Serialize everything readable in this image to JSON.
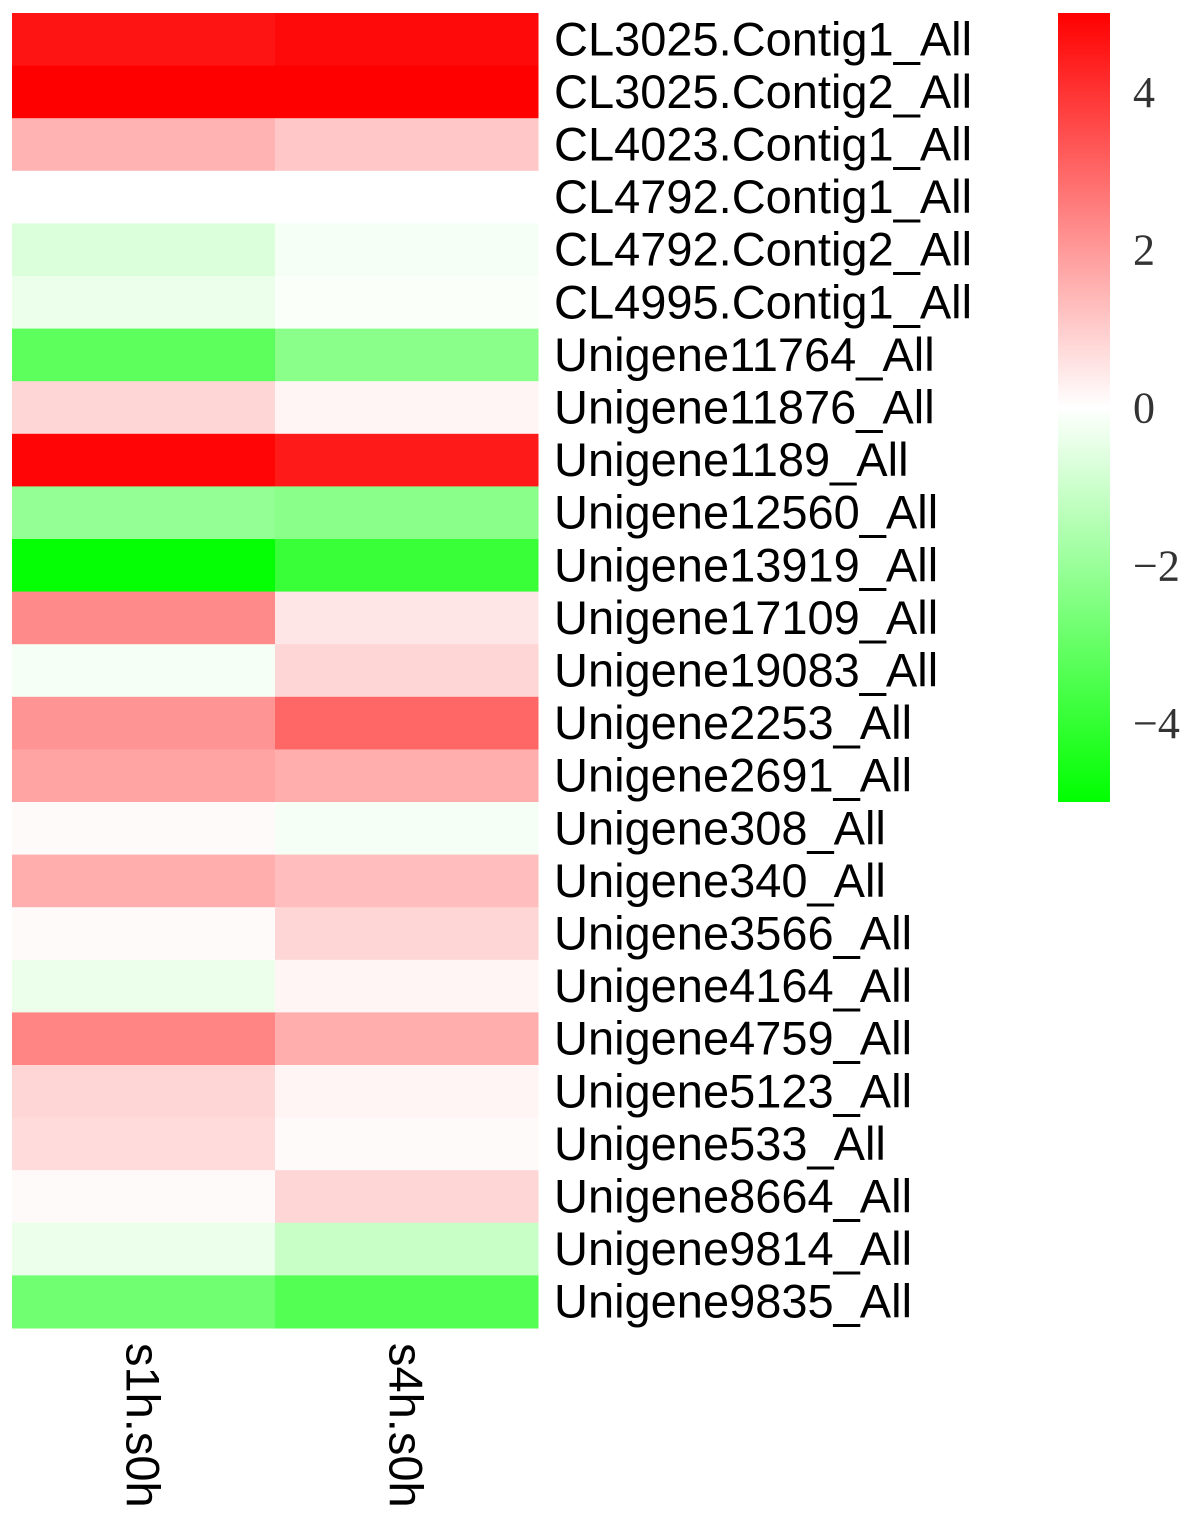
{
  "chart_data": {
    "type": "heatmap",
    "columns": [
      "s1h.s0h",
      "s4h.s0h"
    ],
    "rows": [
      "CL3025.Contig1_All",
      "CL3025.Contig2_All",
      "CL4023.Contig1_All",
      "CL4792.Contig1_All",
      "CL4792.Contig2_All",
      "CL4995.Contig1_All",
      "Unigene11764_All",
      "Unigene11876_All",
      "Unigene1189_All",
      "Unigene12560_All",
      "Unigene13919_All",
      "Unigene17109_All",
      "Unigene19083_All",
      "Unigene2253_All",
      "Unigene2691_All",
      "Unigene308_All",
      "Unigene340_All",
      "Unigene3566_All",
      "Unigene4164_All",
      "Unigene4759_All",
      "Unigene5123_All",
      "Unigene533_All",
      "Unigene8664_All",
      "Unigene9814_All",
      "Unigene9835_All"
    ],
    "values": [
      [
        4.6,
        4.8
      ],
      [
        5.0,
        5.0
      ],
      [
        1.5,
        1.1
      ],
      [
        0.0,
        0.0
      ],
      [
        -0.7,
        -0.2
      ],
      [
        -0.4,
        -0.1
      ],
      [
        -3.2,
        -2.3
      ],
      [
        0.8,
        0.2
      ],
      [
        4.9,
        4.5
      ],
      [
        -2.1,
        -2.3
      ],
      [
        -4.9,
        -3.9
      ],
      [
        2.3,
        0.5
      ],
      [
        -0.2,
        0.8
      ],
      [
        2.1,
        3.0
      ],
      [
        1.8,
        1.6
      ],
      [
        0.1,
        -0.2
      ],
      [
        1.6,
        1.3
      ],
      [
        0.1,
        0.8
      ],
      [
        -0.4,
        0.2
      ],
      [
        2.4,
        1.6
      ],
      [
        0.8,
        0.2
      ],
      [
        0.7,
        0.1
      ],
      [
        0.1,
        0.8
      ],
      [
        -0.4,
        -1.1
      ],
      [
        -2.8,
        -3.4
      ]
    ],
    "colorbar": {
      "min": -5,
      "max": 5,
      "ticks": [
        4,
        2,
        0,
        -2,
        -4
      ],
      "tick_labels": [
        "4",
        "2",
        "0",
        "−2",
        "−4"
      ],
      "colors": {
        "low": "#00ff00",
        "mid": "#ffffff",
        "high": "#ff0000"
      }
    }
  }
}
